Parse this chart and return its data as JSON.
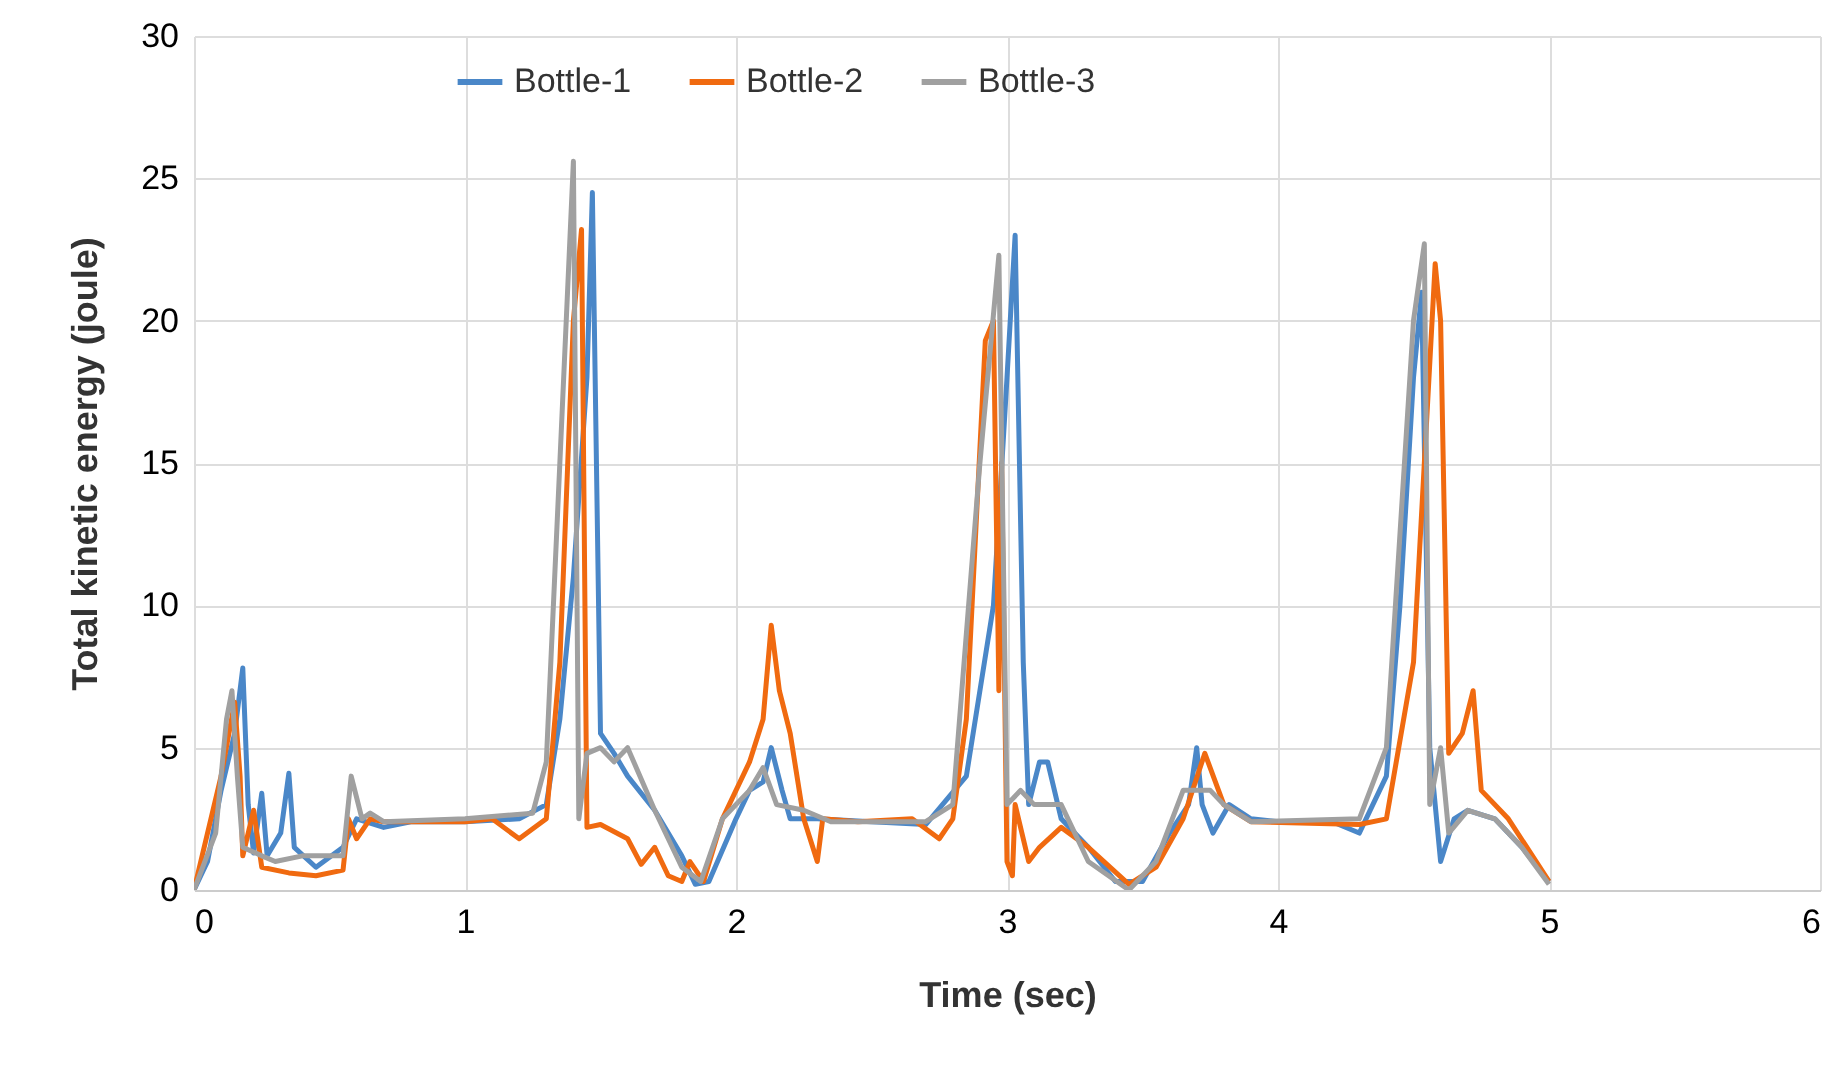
{
  "chart_data": {
    "type": "line",
    "xlabel": "Time (sec)",
    "ylabel": "Total kinetic energy (joule)",
    "xlim": [
      0,
      6
    ],
    "ylim": [
      0,
      30
    ],
    "xticks": [
      0,
      1,
      2,
      3,
      4,
      5,
      6
    ],
    "yticks": [
      0,
      5,
      10,
      15,
      20,
      25,
      30
    ],
    "grid": true,
    "legend": "top",
    "marker": "none",
    "line_style": "solid",
    "series": [
      {
        "name": "Bottle-1",
        "color": "#4a87c8",
        "x": [
          0,
          0.05,
          0.1,
          0.15,
          0.18,
          0.2,
          0.22,
          0.25,
          0.27,
          0.32,
          0.35,
          0.37,
          0.45,
          0.55,
          0.6,
          0.7,
          0.8,
          1.0,
          1.2,
          1.3,
          1.35,
          1.4,
          1.45,
          1.47,
          1.5,
          1.55,
          1.6,
          1.7,
          1.8,
          1.85,
          1.9,
          2.0,
          2.05,
          2.1,
          2.13,
          2.17,
          2.2,
          2.3,
          2.5,
          2.7,
          2.85,
          2.95,
          3.0,
          3.03,
          3.06,
          3.08,
          3.12,
          3.15,
          3.2,
          3.3,
          3.4,
          3.5,
          3.6,
          3.67,
          3.7,
          3.72,
          3.76,
          3.82,
          3.9,
          4.0,
          4.2,
          4.3,
          4.4,
          4.45,
          4.5,
          4.53,
          4.56,
          4.6,
          4.65,
          4.7,
          4.8,
          4.9,
          5.0
        ],
        "values": [
          0,
          1,
          3.5,
          5.5,
          7.8,
          3,
          1.3,
          3.4,
          1.2,
          2,
          4.1,
          1.5,
          0.8,
          1.5,
          2.5,
          2.2,
          2.4,
          2.4,
          2.5,
          3,
          6,
          11,
          18,
          24.5,
          5.5,
          4.8,
          4,
          2.8,
          1.2,
          0.2,
          0.3,
          2.5,
          3.5,
          3.8,
          5,
          3.5,
          2.5,
          2.5,
          2.4,
          2.3,
          4,
          10,
          18,
          23,
          8,
          3,
          4.5,
          4.5,
          2.5,
          1.5,
          0.3,
          0.3,
          2,
          3,
          5,
          3,
          2,
          3,
          2.5,
          2.4,
          2.4,
          2,
          4,
          10,
          18,
          21,
          5,
          1,
          2.5,
          2.8,
          2.5,
          1.5,
          0.3
        ]
      },
      {
        "name": "Bottle-2",
        "color": "#f06a10",
        "x": [
          0,
          0.1,
          0.15,
          0.17,
          0.18,
          0.22,
          0.25,
          0.35,
          0.45,
          0.55,
          0.57,
          0.6,
          0.65,
          0.7,
          1.0,
          1.1,
          1.2,
          1.3,
          1.35,
          1.4,
          1.43,
          1.45,
          1.5,
          1.6,
          1.65,
          1.7,
          1.75,
          1.8,
          1.83,
          1.88,
          1.95,
          2.05,
          2.1,
          2.13,
          2.16,
          2.2,
          2.25,
          2.3,
          2.32,
          2.45,
          2.65,
          2.75,
          2.8,
          2.85,
          2.92,
          2.95,
          2.97,
          2.98,
          3.0,
          3.02,
          3.03,
          3.08,
          3.12,
          3.2,
          3.3,
          3.45,
          3.55,
          3.65,
          3.73,
          3.8,
          3.9,
          4.3,
          4.4,
          4.5,
          4.58,
          4.6,
          4.63,
          4.68,
          4.72,
          4.75,
          4.85,
          5.0
        ],
        "values": [
          0,
          4,
          6.6,
          4,
          1.2,
          2.8,
          0.8,
          0.6,
          0.5,
          0.7,
          2.5,
          1.8,
          2.5,
          2.4,
          2.4,
          2.5,
          1.8,
          2.5,
          8,
          20,
          23.2,
          2.2,
          2.3,
          1.8,
          0.9,
          1.5,
          0.5,
          0.3,
          1,
          0.3,
          2.5,
          4.5,
          6,
          9.3,
          7,
          5.5,
          2.5,
          1,
          2.5,
          2.4,
          2.5,
          1.8,
          2.5,
          6,
          19.3,
          20,
          7,
          15,
          1,
          0.5,
          3,
          1,
          1.5,
          2.2,
          1.5,
          0.2,
          0.8,
          2.5,
          4.8,
          3,
          2.4,
          2.3,
          2.5,
          8,
          22,
          20,
          4.8,
          5.5,
          7,
          3.5,
          2.5,
          0.3
        ]
      },
      {
        "name": "Bottle-3",
        "color": "#a0a0a0",
        "x": [
          0,
          0.08,
          0.12,
          0.14,
          0.16,
          0.18,
          0.25,
          0.3,
          0.4,
          0.55,
          0.58,
          0.62,
          0.65,
          0.7,
          1.0,
          1.25,
          1.3,
          1.35,
          1.4,
          1.42,
          1.45,
          1.5,
          1.55,
          1.6,
          1.7,
          1.8,
          1.87,
          1.95,
          2.05,
          2.1,
          2.15,
          2.25,
          2.35,
          2.7,
          2.8,
          2.9,
          2.97,
          3.0,
          3.05,
          3.1,
          3.2,
          3.3,
          3.45,
          3.55,
          3.65,
          3.75,
          3.8,
          3.9,
          4.3,
          4.4,
          4.5,
          4.54,
          4.56,
          4.6,
          4.63,
          4.7,
          4.8,
          4.9,
          5.0
        ],
        "values": [
          0,
          2,
          6,
          7,
          4,
          1.5,
          1.2,
          1,
          1.2,
          1.2,
          4,
          2.5,
          2.7,
          2.4,
          2.5,
          2.7,
          4.5,
          15,
          25.6,
          2.5,
          4.8,
          5,
          4.5,
          5,
          2.8,
          0.8,
          0.3,
          2.5,
          3.5,
          4.3,
          3,
          2.8,
          2.4,
          2.4,
          3,
          15,
          22.3,
          3,
          3.5,
          3,
          3,
          1,
          0,
          1,
          3.5,
          3.5,
          3,
          2.4,
          2.5,
          5,
          20,
          22.7,
          3,
          5,
          2,
          2.8,
          2.5,
          1.5,
          0.2
        ]
      }
    ]
  }
}
